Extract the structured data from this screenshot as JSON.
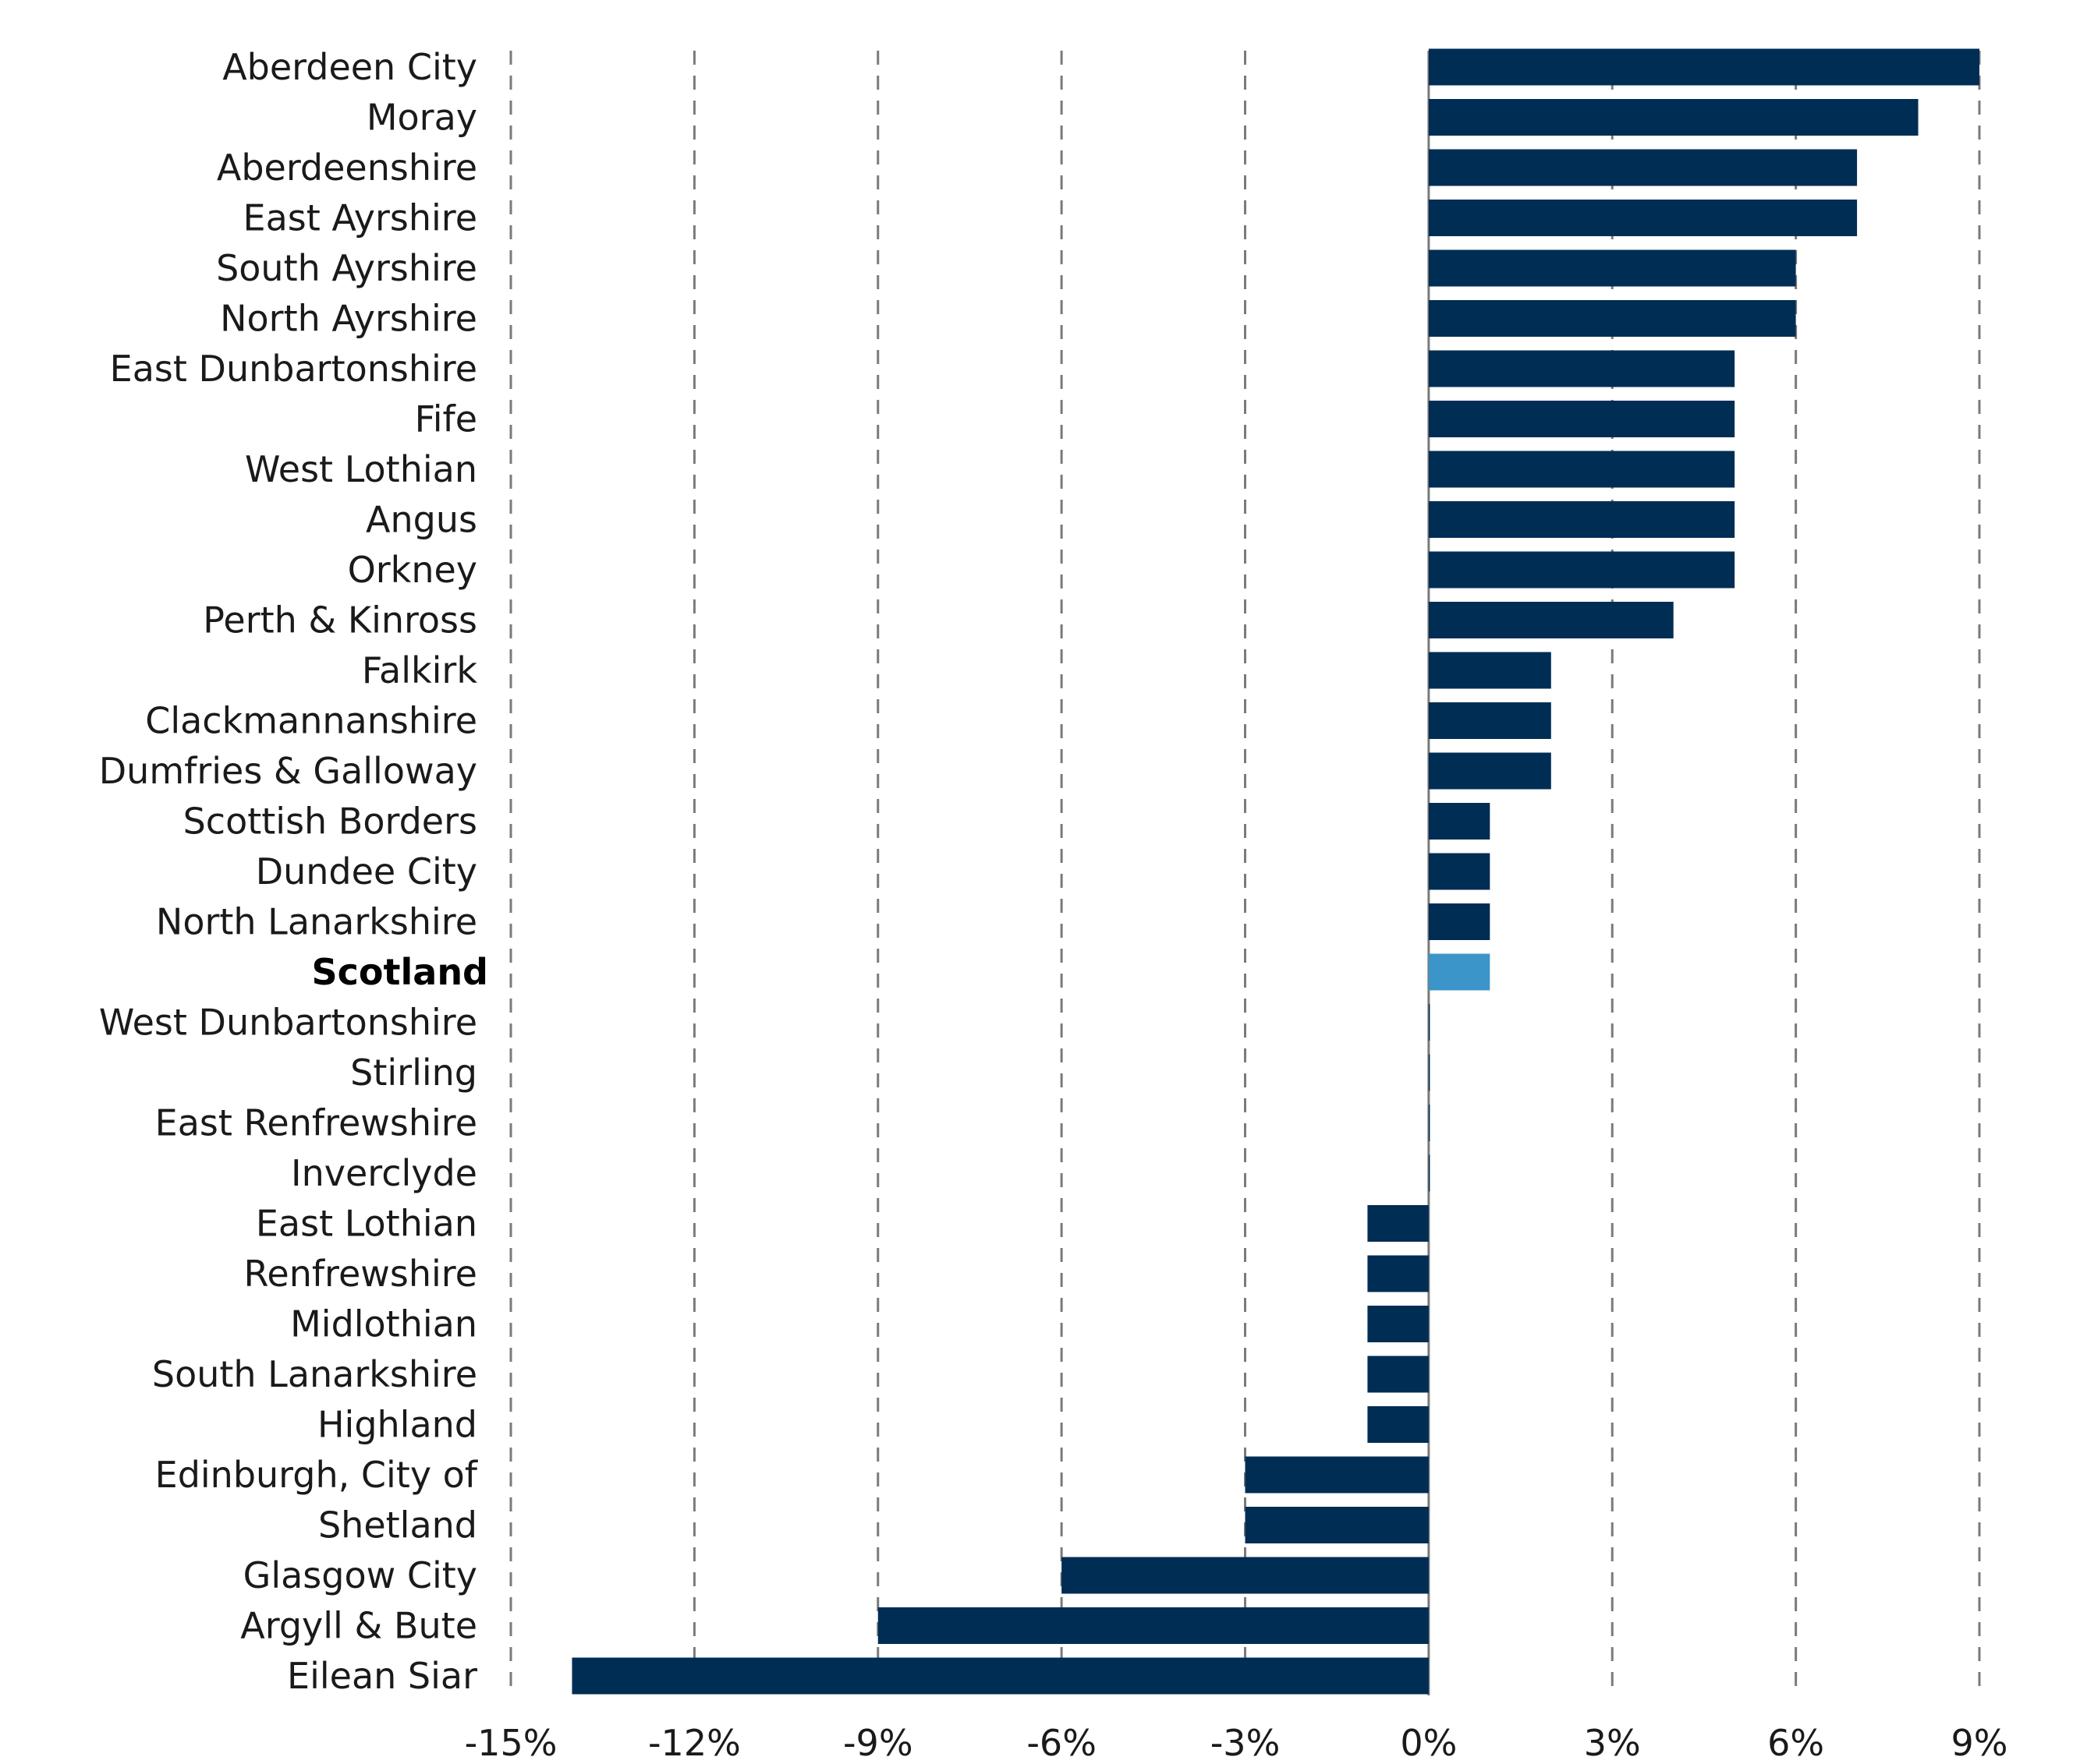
{
  "chart_data": {
    "type": "bar",
    "orientation": "horizontal",
    "categories": [
      "Aberdeen City",
      "Moray",
      "Aberdeenshire",
      "East Ayrshire",
      "South Ayrshire",
      "North Ayrshire",
      "East Dunbartonshire",
      "Fife",
      "West Lothian",
      "Angus",
      "Orkney",
      "Perth & Kinross",
      "Falkirk",
      "Clackmannanshire",
      "Dumfries & Galloway",
      "Scottish Borders",
      "Dundee City",
      "North Lanarkshire",
      "Scotland",
      "West Dunbartonshire",
      "Stirling",
      "East Renfrewshire",
      "Inverclyde",
      "East Lothian",
      "Renfrewshire",
      "Midlothian",
      "South Lanarkshire",
      "Highland",
      "Edinburgh, City of",
      "Shetland",
      "Glasgow City",
      "Argyll & Bute",
      "Eilean Siar"
    ],
    "values": [
      9,
      8,
      7,
      7,
      6,
      6,
      5,
      5,
      5,
      5,
      5,
      4,
      2,
      2,
      2,
      1,
      1,
      1,
      1,
      0,
      0,
      0,
      0,
      -1,
      -1,
      -1,
      -1,
      -1,
      -3,
      -3,
      -6,
      -9,
      -14
    ],
    "highlight_category": "Scotland",
    "xlim": [
      -15,
      9
    ],
    "xticks": [
      -15,
      -12,
      -9,
      -6,
      -3,
      0,
      3,
      6,
      9
    ],
    "xtick_labels": [
      "-15%",
      "-12%",
      "-9%",
      "-6%",
      "-3%",
      "0%",
      "3%",
      "6%",
      "9%"
    ],
    "grid": "vertical dashed",
    "colors": {
      "bar": "#002d54",
      "highlight": "#3b95c9"
    }
  }
}
